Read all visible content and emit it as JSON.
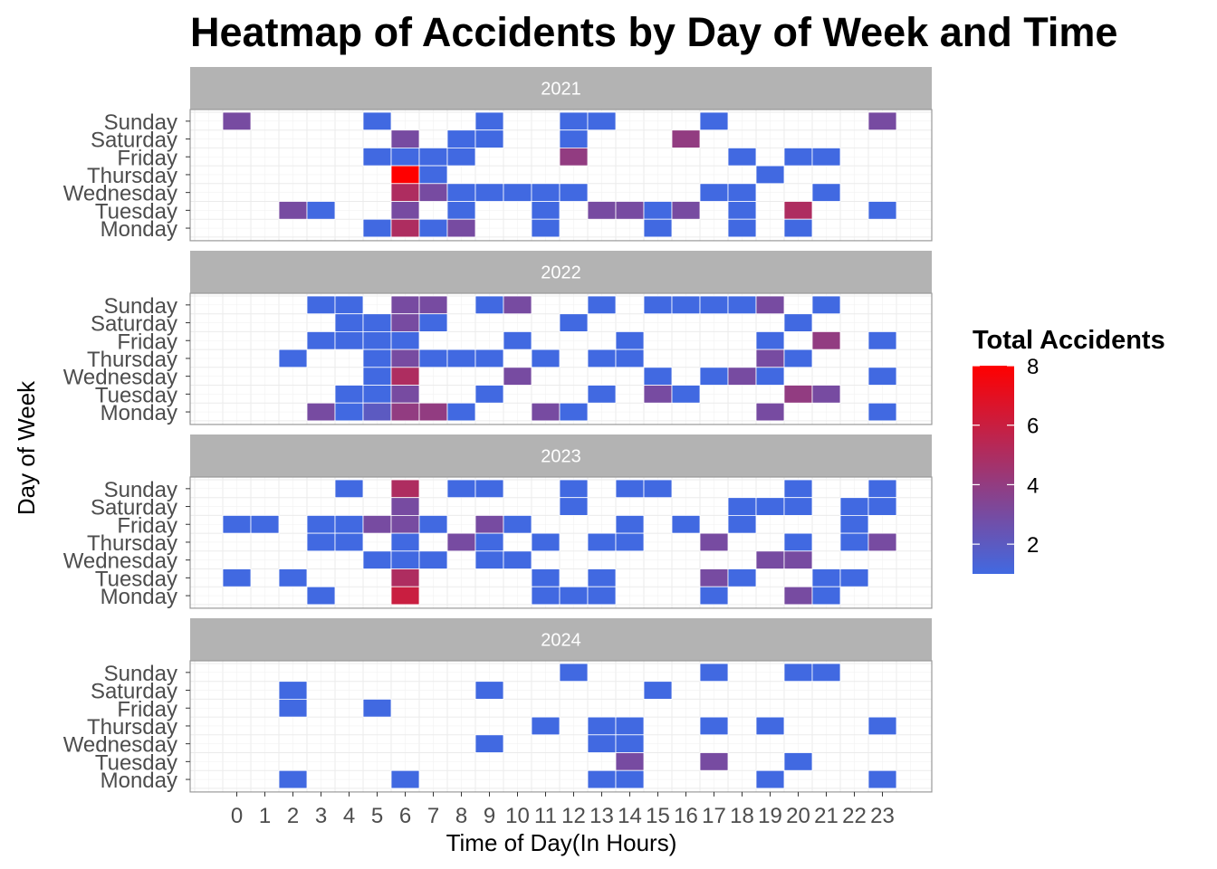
{
  "chart_data": {
    "type": "heatmap",
    "title": "Heatmap of Accidents by Day of Week and Time",
    "xlabel": "Time of Day(In Hours)",
    "ylabel": "Day of Week",
    "x_ticks": [
      "0",
      "1",
      "2",
      "3",
      "4",
      "5",
      "6",
      "7",
      "8",
      "9",
      "10",
      "11",
      "12",
      "13",
      "14",
      "15",
      "16",
      "17",
      "18",
      "19",
      "20",
      "21",
      "22",
      "23"
    ],
    "days": [
      "Sunday",
      "Saturday",
      "Friday",
      "Thursday",
      "Wednesday",
      "Tuesday",
      "Monday"
    ],
    "legend": {
      "title": "Total Accidents",
      "ticks": [
        "2",
        "4",
        "6",
        "8"
      ],
      "min": 1,
      "max": 8,
      "low_color": "#4169E1",
      "high_color": "#FF0000"
    },
    "panels": [
      {
        "year": "2021",
        "cells": [
          [
            "Sunday",
            0,
            3
          ],
          [
            "Sunday",
            5,
            1
          ],
          [
            "Sunday",
            9,
            1
          ],
          [
            "Sunday",
            12,
            1
          ],
          [
            "Sunday",
            13,
            1
          ],
          [
            "Sunday",
            17,
            1
          ],
          [
            "Sunday",
            23,
            3
          ],
          [
            "Saturday",
            6,
            3
          ],
          [
            "Saturday",
            8,
            1
          ],
          [
            "Saturday",
            9,
            1
          ],
          [
            "Saturday",
            12,
            1
          ],
          [
            "Saturday",
            16,
            4
          ],
          [
            "Friday",
            5,
            1
          ],
          [
            "Friday",
            6,
            1
          ],
          [
            "Friday",
            7,
            1
          ],
          [
            "Friday",
            8,
            1
          ],
          [
            "Friday",
            12,
            4
          ],
          [
            "Friday",
            18,
            1
          ],
          [
            "Friday",
            20,
            1
          ],
          [
            "Friday",
            21,
            1
          ],
          [
            "Thursday",
            6,
            8
          ],
          [
            "Thursday",
            7,
            1
          ],
          [
            "Thursday",
            19,
            1
          ],
          [
            "Wednesday",
            6,
            5
          ],
          [
            "Wednesday",
            7,
            3
          ],
          [
            "Wednesday",
            8,
            1
          ],
          [
            "Wednesday",
            9,
            1
          ],
          [
            "Wednesday",
            10,
            1
          ],
          [
            "Wednesday",
            11,
            1
          ],
          [
            "Wednesday",
            12,
            1
          ],
          [
            "Wednesday",
            17,
            1
          ],
          [
            "Wednesday",
            18,
            1
          ],
          [
            "Wednesday",
            21,
            1
          ],
          [
            "Tuesday",
            2,
            3
          ],
          [
            "Tuesday",
            3,
            1
          ],
          [
            "Tuesday",
            6,
            3
          ],
          [
            "Tuesday",
            8,
            1
          ],
          [
            "Tuesday",
            11,
            1
          ],
          [
            "Tuesday",
            13,
            3
          ],
          [
            "Tuesday",
            14,
            3
          ],
          [
            "Tuesday",
            15,
            1
          ],
          [
            "Tuesday",
            16,
            3
          ],
          [
            "Tuesday",
            18,
            1
          ],
          [
            "Tuesday",
            20,
            5
          ],
          [
            "Tuesday",
            23,
            1
          ],
          [
            "Monday",
            5,
            1
          ],
          [
            "Monday",
            6,
            5
          ],
          [
            "Monday",
            7,
            1
          ],
          [
            "Monday",
            8,
            3
          ],
          [
            "Monday",
            11,
            1
          ],
          [
            "Monday",
            15,
            1
          ],
          [
            "Monday",
            18,
            1
          ],
          [
            "Monday",
            20,
            1
          ]
        ]
      },
      {
        "year": "2022",
        "cells": [
          [
            "Sunday",
            3,
            1
          ],
          [
            "Sunday",
            4,
            1
          ],
          [
            "Sunday",
            6,
            3
          ],
          [
            "Sunday",
            7,
            3
          ],
          [
            "Sunday",
            9,
            1
          ],
          [
            "Sunday",
            10,
            3
          ],
          [
            "Sunday",
            13,
            1
          ],
          [
            "Sunday",
            15,
            1
          ],
          [
            "Sunday",
            16,
            1
          ],
          [
            "Sunday",
            17,
            1
          ],
          [
            "Sunday",
            18,
            1
          ],
          [
            "Sunday",
            19,
            3
          ],
          [
            "Sunday",
            21,
            1
          ],
          [
            "Saturday",
            4,
            1
          ],
          [
            "Saturday",
            5,
            1
          ],
          [
            "Saturday",
            6,
            3
          ],
          [
            "Saturday",
            7,
            1
          ],
          [
            "Saturday",
            12,
            1
          ],
          [
            "Saturday",
            20,
            1
          ],
          [
            "Friday",
            3,
            1
          ],
          [
            "Friday",
            4,
            1
          ],
          [
            "Friday",
            5,
            1
          ],
          [
            "Friday",
            6,
            1
          ],
          [
            "Friday",
            10,
            1
          ],
          [
            "Friday",
            14,
            1
          ],
          [
            "Friday",
            19,
            1
          ],
          [
            "Friday",
            21,
            4
          ],
          [
            "Friday",
            23,
            1
          ],
          [
            "Thursday",
            2,
            1
          ],
          [
            "Thursday",
            5,
            1
          ],
          [
            "Thursday",
            6,
            3
          ],
          [
            "Thursday",
            7,
            1
          ],
          [
            "Thursday",
            8,
            1
          ],
          [
            "Thursday",
            9,
            1
          ],
          [
            "Thursday",
            11,
            1
          ],
          [
            "Thursday",
            13,
            1
          ],
          [
            "Thursday",
            14,
            1
          ],
          [
            "Thursday",
            19,
            3
          ],
          [
            "Thursday",
            20,
            1
          ],
          [
            "Wednesday",
            5,
            1
          ],
          [
            "Wednesday",
            6,
            5
          ],
          [
            "Wednesday",
            10,
            3
          ],
          [
            "Wednesday",
            15,
            1
          ],
          [
            "Wednesday",
            17,
            1
          ],
          [
            "Wednesday",
            18,
            3
          ],
          [
            "Wednesday",
            19,
            1
          ],
          [
            "Wednesday",
            23,
            1
          ],
          [
            "Tuesday",
            4,
            1
          ],
          [
            "Tuesday",
            5,
            1
          ],
          [
            "Tuesday",
            6,
            3
          ],
          [
            "Tuesday",
            9,
            1
          ],
          [
            "Tuesday",
            13,
            1
          ],
          [
            "Tuesday",
            15,
            3
          ],
          [
            "Tuesday",
            16,
            1
          ],
          [
            "Tuesday",
            20,
            4
          ],
          [
            "Tuesday",
            21,
            3
          ],
          [
            "Monday",
            3,
            3
          ],
          [
            "Monday",
            4,
            1
          ],
          [
            "Monday",
            5,
            2
          ],
          [
            "Monday",
            6,
            4
          ],
          [
            "Monday",
            7,
            4
          ],
          [
            "Monday",
            8,
            1
          ],
          [
            "Monday",
            11,
            3
          ],
          [
            "Monday",
            12,
            1
          ],
          [
            "Monday",
            19,
            3
          ],
          [
            "Monday",
            23,
            1
          ]
        ]
      },
      {
        "year": "2023",
        "cells": [
          [
            "Sunday",
            4,
            1
          ],
          [
            "Sunday",
            6,
            5
          ],
          [
            "Sunday",
            8,
            1
          ],
          [
            "Sunday",
            9,
            1
          ],
          [
            "Sunday",
            12,
            1
          ],
          [
            "Sunday",
            14,
            1
          ],
          [
            "Sunday",
            15,
            1
          ],
          [
            "Sunday",
            20,
            1
          ],
          [
            "Sunday",
            23,
            1
          ],
          [
            "Saturday",
            6,
            3
          ],
          [
            "Saturday",
            12,
            1
          ],
          [
            "Saturday",
            18,
            1
          ],
          [
            "Saturday",
            19,
            1
          ],
          [
            "Saturday",
            20,
            1
          ],
          [
            "Saturday",
            22,
            1
          ],
          [
            "Saturday",
            23,
            1
          ],
          [
            "Friday",
            0,
            1
          ],
          [
            "Friday",
            1,
            1
          ],
          [
            "Friday",
            3,
            1
          ],
          [
            "Friday",
            4,
            1
          ],
          [
            "Friday",
            5,
            3
          ],
          [
            "Friday",
            6,
            3
          ],
          [
            "Friday",
            7,
            1
          ],
          [
            "Friday",
            9,
            3
          ],
          [
            "Friday",
            10,
            1
          ],
          [
            "Friday",
            14,
            1
          ],
          [
            "Friday",
            16,
            1
          ],
          [
            "Friday",
            18,
            1
          ],
          [
            "Friday",
            22,
            1
          ],
          [
            "Thursday",
            3,
            1
          ],
          [
            "Thursday",
            4,
            1
          ],
          [
            "Thursday",
            6,
            1
          ],
          [
            "Thursday",
            8,
            3
          ],
          [
            "Thursday",
            9,
            1
          ],
          [
            "Thursday",
            11,
            1
          ],
          [
            "Thursday",
            13,
            1
          ],
          [
            "Thursday",
            14,
            1
          ],
          [
            "Thursday",
            17,
            3
          ],
          [
            "Thursday",
            20,
            1
          ],
          [
            "Thursday",
            22,
            1
          ],
          [
            "Thursday",
            23,
            3
          ],
          [
            "Wednesday",
            5,
            1
          ],
          [
            "Wednesday",
            6,
            1
          ],
          [
            "Wednesday",
            7,
            1
          ],
          [
            "Wednesday",
            9,
            1
          ],
          [
            "Wednesday",
            10,
            1
          ],
          [
            "Wednesday",
            19,
            3
          ],
          [
            "Wednesday",
            20,
            3
          ],
          [
            "Tuesday",
            0,
            1
          ],
          [
            "Tuesday",
            2,
            1
          ],
          [
            "Tuesday",
            6,
            5
          ],
          [
            "Tuesday",
            11,
            1
          ],
          [
            "Tuesday",
            13,
            1
          ],
          [
            "Tuesday",
            17,
            3
          ],
          [
            "Tuesday",
            18,
            1
          ],
          [
            "Tuesday",
            21,
            1
          ],
          [
            "Tuesday",
            22,
            1
          ],
          [
            "Monday",
            3,
            1
          ],
          [
            "Monday",
            6,
            6
          ],
          [
            "Monday",
            11,
            1
          ],
          [
            "Monday",
            12,
            1
          ],
          [
            "Monday",
            13,
            1
          ],
          [
            "Monday",
            17,
            1
          ],
          [
            "Monday",
            20,
            3
          ],
          [
            "Monday",
            21,
            1
          ]
        ]
      },
      {
        "year": "2024",
        "cells": [
          [
            "Sunday",
            12,
            1
          ],
          [
            "Sunday",
            17,
            1
          ],
          [
            "Sunday",
            20,
            1
          ],
          [
            "Sunday",
            21,
            1
          ],
          [
            "Saturday",
            2,
            1
          ],
          [
            "Saturday",
            9,
            1
          ],
          [
            "Saturday",
            15,
            1
          ],
          [
            "Friday",
            2,
            1
          ],
          [
            "Friday",
            5,
            1
          ],
          [
            "Thursday",
            11,
            1
          ],
          [
            "Thursday",
            13,
            1
          ],
          [
            "Thursday",
            14,
            1
          ],
          [
            "Thursday",
            17,
            1
          ],
          [
            "Thursday",
            19,
            1
          ],
          [
            "Thursday",
            23,
            1
          ],
          [
            "Wednesday",
            9,
            1
          ],
          [
            "Wednesday",
            13,
            1
          ],
          [
            "Wednesday",
            14,
            1
          ],
          [
            "Tuesday",
            14,
            3
          ],
          [
            "Tuesday",
            17,
            3
          ],
          [
            "Tuesday",
            20,
            1
          ],
          [
            "Monday",
            2,
            1
          ],
          [
            "Monday",
            6,
            1
          ],
          [
            "Monday",
            13,
            1
          ],
          [
            "Monday",
            14,
            1
          ],
          [
            "Monday",
            19,
            1
          ],
          [
            "Monday",
            23,
            1
          ]
        ]
      }
    ]
  }
}
